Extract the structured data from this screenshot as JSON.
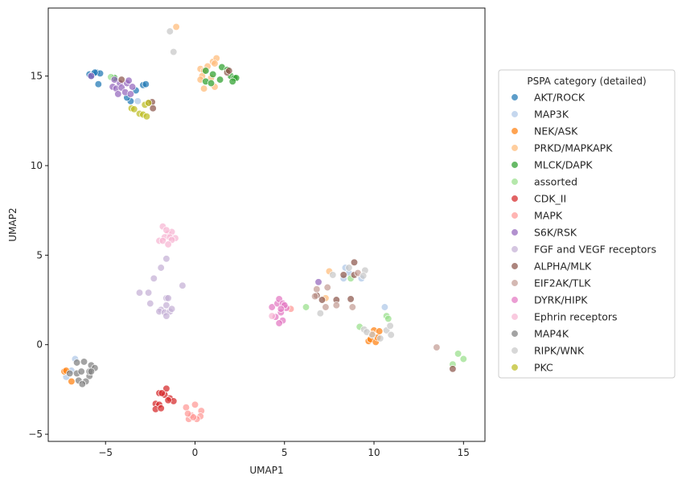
{
  "chart_data": {
    "type": "scatter",
    "xlabel": "UMAP1",
    "ylabel": "UMAP2",
    "xlim": [
      -8.2,
      16.2
    ],
    "ylim": [
      -5.4,
      18.8
    ],
    "x_ticks": [
      -5,
      0,
      5,
      10,
      15
    ],
    "y_ticks": [
      -5,
      0,
      5,
      10,
      15
    ],
    "grid": false,
    "legend_title": "PSPA category (detailed)",
    "legend_position": "outside-right",
    "series": [
      {
        "name": "AKT/ROCK",
        "color": "#1f77b4",
        "points": [
          [
            -5.9,
            15.1
          ],
          [
            -5.7,
            15.1
          ],
          [
            -5.5,
            15.2
          ],
          [
            -5.3,
            15.15
          ],
          [
            -5.4,
            14.55
          ],
          [
            -5.8,
            15.0
          ],
          [
            -2.9,
            14.5
          ],
          [
            -2.75,
            14.55
          ],
          [
            -3.3,
            14.2
          ],
          [
            -3.6,
            13.6
          ],
          [
            -3.8,
            13.8
          ],
          [
            -5.6,
            15.2
          ]
        ]
      },
      {
        "name": "MAP3K",
        "color": "#aec7e8",
        "points": [
          [
            -7.2,
            -1.8
          ],
          [
            -6.7,
            -0.8
          ],
          [
            -6.9,
            -1.45
          ],
          [
            8.4,
            4.3
          ],
          [
            8.6,
            4.0
          ],
          [
            9.3,
            3.7
          ],
          [
            8.3,
            3.7
          ],
          [
            10.6,
            2.1
          ],
          [
            -3.2,
            13.6
          ]
        ]
      },
      {
        "name": "NEK/ASK",
        "color": "#ff7f0e",
        "points": [
          [
            -7.3,
            -1.5
          ],
          [
            -7.2,
            -1.45
          ],
          [
            -6.9,
            -2.05
          ],
          [
            9.7,
            0.2
          ],
          [
            9.8,
            0.3
          ],
          [
            10.0,
            0.8
          ],
          [
            10.1,
            0.15
          ],
          [
            10.2,
            0.4
          ],
          [
            9.9,
            0.6
          ],
          [
            10.3,
            0.75
          ]
        ]
      },
      {
        "name": "PRKD/MAPKAPK",
        "color": "#ffbb78",
        "points": [
          [
            -1.05,
            17.75
          ],
          [
            0.3,
            15.4
          ],
          [
            0.5,
            15.3
          ],
          [
            0.7,
            15.55
          ],
          [
            1.0,
            15.8
          ],
          [
            1.2,
            16.0
          ],
          [
            1.1,
            15.7
          ],
          [
            0.4,
            15.0
          ],
          [
            0.9,
            14.9
          ],
          [
            1.1,
            14.4
          ],
          [
            0.5,
            14.3
          ],
          [
            0.3,
            14.8
          ],
          [
            7.5,
            4.1
          ],
          [
            7.3,
            2.6
          ]
        ]
      },
      {
        "name": "MLCK/DAPK",
        "color": "#2ca02c",
        "points": [
          [
            0.6,
            15.3
          ],
          [
            1.0,
            15.1
          ],
          [
            1.5,
            15.5
          ],
          [
            1.8,
            15.35
          ],
          [
            2.0,
            15.0
          ],
          [
            2.2,
            14.9
          ],
          [
            2.3,
            14.9
          ],
          [
            2.1,
            14.7
          ],
          [
            0.6,
            14.7
          ],
          [
            0.9,
            14.6
          ],
          [
            1.4,
            14.8
          ],
          [
            -4.5,
            14.9
          ]
        ]
      },
      {
        "name": "assorted",
        "color": "#98df8a",
        "points": [
          [
            6.2,
            2.1
          ],
          [
            10.7,
            1.6
          ],
          [
            10.8,
            1.45
          ],
          [
            9.2,
            1.0
          ],
          [
            14.4,
            -1.1
          ],
          [
            14.7,
            -0.5
          ],
          [
            15.0,
            -0.8
          ],
          [
            8.7,
            3.7
          ],
          [
            -4.7,
            14.95
          ]
        ]
      },
      {
        "name": "CDK_II",
        "color": "#d62728",
        "points": [
          [
            -2.0,
            -2.7
          ],
          [
            -1.7,
            -2.8
          ],
          [
            -1.6,
            -2.45
          ],
          [
            -1.4,
            -3.0
          ],
          [
            -1.2,
            -3.15
          ],
          [
            -2.2,
            -3.3
          ],
          [
            -2.0,
            -3.35
          ],
          [
            -2.2,
            -3.6
          ],
          [
            -1.9,
            -3.55
          ],
          [
            -1.5,
            -3.1
          ],
          [
            -1.85,
            -2.7
          ]
        ]
      },
      {
        "name": "MAPK",
        "color": "#ff9896",
        "points": [
          [
            -0.5,
            -3.5
          ],
          [
            0.0,
            -3.35
          ],
          [
            0.35,
            -3.7
          ],
          [
            0.3,
            -4.0
          ],
          [
            0.1,
            -4.15
          ],
          [
            -0.35,
            -4.15
          ],
          [
            -0.2,
            -3.95
          ],
          [
            -0.1,
            -4.05
          ],
          [
            5.35,
            2.0
          ],
          [
            -0.4,
            -3.85
          ]
        ]
      },
      {
        "name": "S6K/RSK",
        "color": "#9467bd",
        "points": [
          [
            -5.8,
            15.0
          ],
          [
            -4.6,
            14.4
          ],
          [
            -4.4,
            14.3
          ],
          [
            -4.2,
            14.6
          ],
          [
            -4.3,
            14.0
          ],
          [
            -4.1,
            14.35
          ],
          [
            -3.8,
            14.6
          ],
          [
            -3.7,
            14.75
          ],
          [
            -3.9,
            14.1
          ],
          [
            -3.6,
            14.0
          ],
          [
            -3.5,
            14.4
          ],
          [
            -4.5,
            14.8
          ],
          [
            6.9,
            3.5
          ]
        ]
      },
      {
        "name": "FGF and VEGF receptors",
        "color": "#c5b0d5",
        "points": [
          [
            -1.6,
            4.8
          ],
          [
            -1.9,
            4.3
          ],
          [
            -2.3,
            3.7
          ],
          [
            -3.1,
            2.9
          ],
          [
            -2.6,
            2.9
          ],
          [
            -1.6,
            2.6
          ],
          [
            -1.5,
            2.6
          ],
          [
            -0.7,
            3.3
          ],
          [
            -2.5,
            2.3
          ],
          [
            -1.6,
            2.2
          ],
          [
            -1.9,
            1.95
          ],
          [
            -2.0,
            1.85
          ],
          [
            -1.7,
            1.8
          ],
          [
            -1.4,
            1.85
          ],
          [
            -1.3,
            2.0
          ],
          [
            -1.6,
            1.6
          ]
        ]
      },
      {
        "name": "ALPHA/MLK",
        "color": "#8c564b",
        "points": [
          [
            -2.55,
            13.5
          ],
          [
            -2.4,
            13.55
          ],
          [
            -2.35,
            13.2
          ],
          [
            -4.1,
            14.8
          ],
          [
            1.8,
            15.2
          ],
          [
            1.9,
            15.3
          ],
          [
            7.1,
            2.5
          ],
          [
            7.9,
            2.5
          ],
          [
            8.7,
            2.55
          ],
          [
            8.9,
            4.6
          ],
          [
            8.3,
            3.9
          ],
          [
            8.9,
            3.9
          ],
          [
            14.4,
            -1.35
          ],
          [
            6.8,
            2.75
          ]
        ]
      },
      {
        "name": "EIF2AK/TLK",
        "color": "#c49c94",
        "points": [
          [
            6.8,
            3.1
          ],
          [
            7.4,
            3.2
          ],
          [
            7.3,
            2.1
          ],
          [
            7.9,
            2.2
          ],
          [
            8.8,
            2.1
          ],
          [
            6.7,
            2.7
          ],
          [
            13.5,
            -0.15
          ],
          [
            9.1,
            4.0
          ]
        ]
      },
      {
        "name": "DYRK/HIPK",
        "color": "#e377c2",
        "points": [
          [
            4.3,
            2.1
          ],
          [
            4.6,
            2.3
          ],
          [
            4.7,
            2.55
          ],
          [
            4.9,
            2.3
          ],
          [
            5.1,
            2.05
          ],
          [
            4.8,
            1.8
          ],
          [
            4.5,
            1.55
          ],
          [
            4.9,
            1.35
          ],
          [
            4.7,
            1.2
          ],
          [
            5.0,
            2.2
          ],
          [
            4.8,
            2.0
          ]
        ]
      },
      {
        "name": "Ephrin receptors",
        "color": "#f7b6d2",
        "points": [
          [
            -1.8,
            6.6
          ],
          [
            -1.5,
            6.2
          ],
          [
            -1.3,
            6.3
          ],
          [
            -1.6,
            6.4
          ],
          [
            -2.0,
            5.8
          ],
          [
            -1.7,
            6.0
          ],
          [
            -1.8,
            5.8
          ],
          [
            -1.4,
            6.0
          ],
          [
            -1.1,
            5.95
          ],
          [
            -1.3,
            5.85
          ],
          [
            -1.5,
            5.6
          ],
          [
            4.3,
            1.6
          ]
        ]
      },
      {
        "name": "MAP4K",
        "color": "#7f7f7f",
        "points": [
          [
            -7.0,
            -1.6
          ],
          [
            -6.6,
            -1.0
          ],
          [
            -6.2,
            -0.95
          ],
          [
            -5.8,
            -1.15
          ],
          [
            -5.6,
            -1.3
          ],
          [
            -5.9,
            -1.75
          ],
          [
            -6.1,
            -2.05
          ],
          [
            -6.6,
            -1.6
          ],
          [
            -6.5,
            -2.0
          ],
          [
            -6.3,
            -2.2
          ],
          [
            -5.9,
            -1.5
          ],
          [
            -6.35,
            -1.5
          ],
          [
            -5.8,
            -1.5
          ]
        ]
      },
      {
        "name": "RIPK/WNK",
        "color": "#c7c7c7",
        "points": [
          [
            -1.4,
            17.5
          ],
          [
            -1.2,
            16.35
          ],
          [
            7.0,
            1.75
          ],
          [
            7.7,
            3.9
          ],
          [
            8.6,
            4.3
          ],
          [
            9.5,
            4.15
          ],
          [
            9.4,
            3.85
          ],
          [
            9.45,
            0.85
          ],
          [
            9.6,
            0.7
          ],
          [
            10.35,
            0.35
          ],
          [
            10.7,
            0.8
          ],
          [
            10.9,
            1.05
          ],
          [
            10.95,
            0.55
          ],
          [
            9.9,
            0.55
          ]
        ]
      },
      {
        "name": "PKC",
        "color": "#bcbd22",
        "points": [
          [
            -3.55,
            13.2
          ],
          [
            -3.4,
            13.15
          ],
          [
            -3.1,
            12.9
          ],
          [
            -2.9,
            12.85
          ],
          [
            -2.7,
            12.75
          ],
          [
            -2.8,
            13.4
          ],
          [
            -2.6,
            13.5
          ]
        ]
      }
    ]
  }
}
